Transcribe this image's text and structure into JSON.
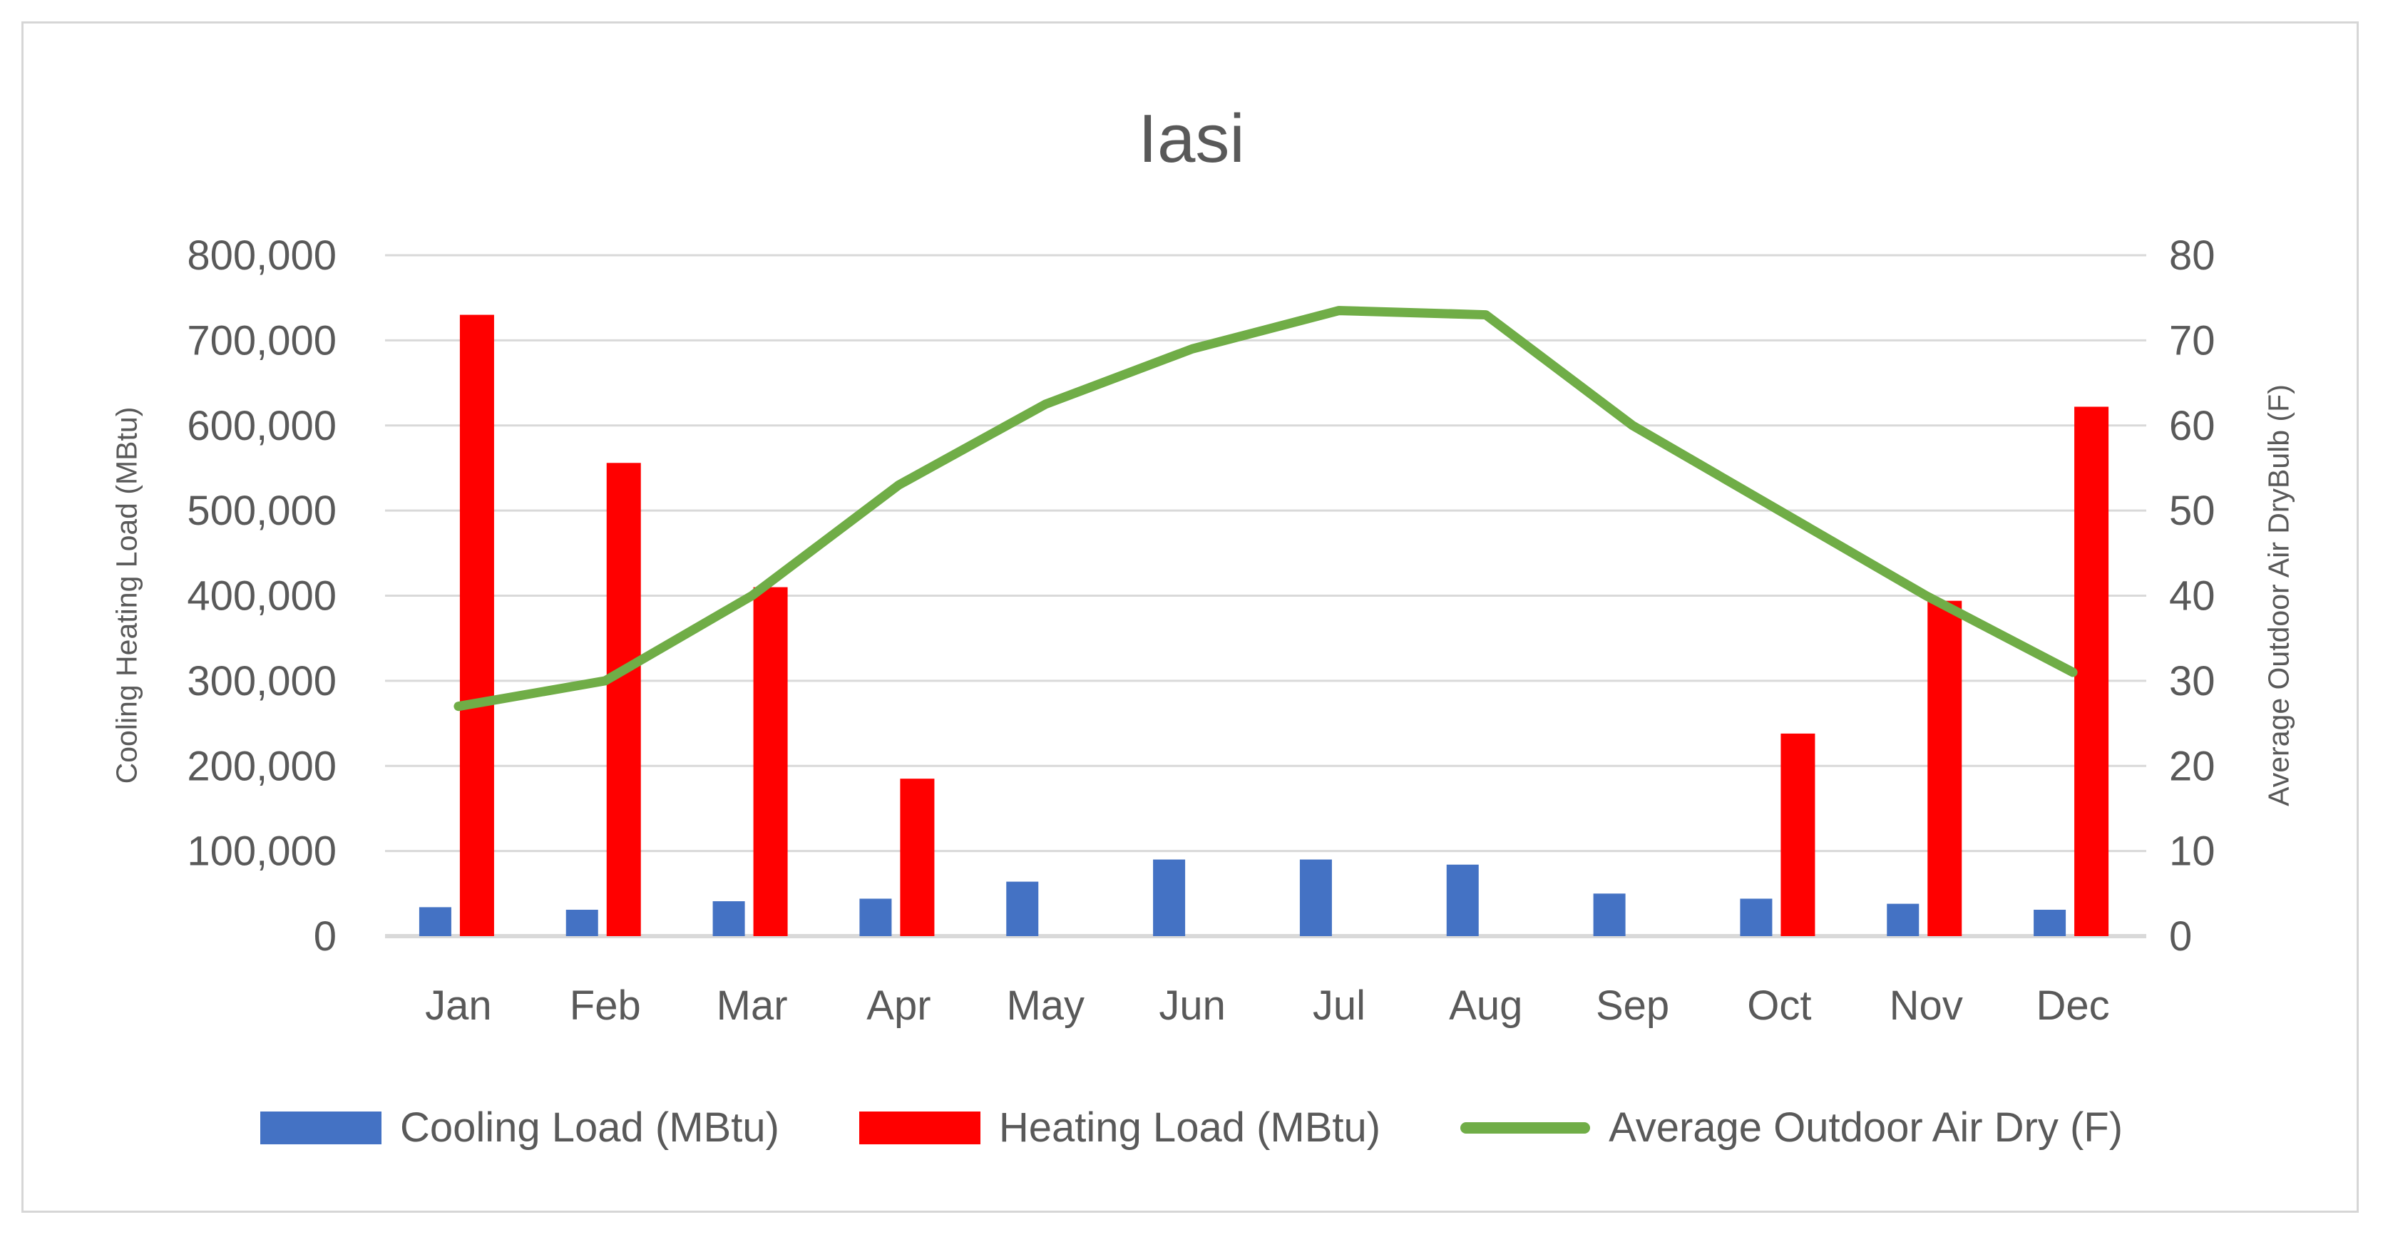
{
  "title": "Iasi",
  "chart_data": {
    "type": "combo-bar-line",
    "title": "Iasi",
    "categories": [
      "Jan",
      "Feb",
      "Mar",
      "Apr",
      "May",
      "Jun",
      "Jul",
      "Aug",
      "Sep",
      "Oct",
      "Nov",
      "Dec"
    ],
    "series": [
      {
        "name": "Cooling Load (MBtu)",
        "type": "bar",
        "axis": "left",
        "color": "#4472C4",
        "values": [
          34000,
          31000,
          41000,
          44000,
          64000,
          90000,
          90000,
          84000,
          50000,
          44000,
          38000,
          31000
        ]
      },
      {
        "name": "Heating Load (MBtu)",
        "type": "bar",
        "axis": "left",
        "color": "#FF0000",
        "values": [
          730000,
          556000,
          410000,
          185000,
          0,
          0,
          0,
          0,
          0,
          238000,
          394000,
          622000
        ]
      },
      {
        "name": "Average Outdoor Air Dry (F)",
        "type": "line",
        "axis": "right",
        "color": "#70AD47",
        "values": [
          27,
          30,
          40,
          53,
          62.5,
          69,
          73.5,
          73,
          60,
          50,
          40,
          31
        ]
      }
    ],
    "left_axis": {
      "title": "Cooling Heating Load (MBtu)",
      "min": 0,
      "max": 800000,
      "step": 100000,
      "tick_labels": [
        "0",
        "100,000",
        "200,000",
        "300,000",
        "400,000",
        "500,000",
        "600,000",
        "700,000",
        "800,000"
      ]
    },
    "right_axis": {
      "title": "Average Outdoor Air DryBulb (F)",
      "min": 0,
      "max": 80,
      "step": 10,
      "tick_labels": [
        "0",
        "10",
        "20",
        "30",
        "40",
        "50",
        "60",
        "70",
        "80"
      ]
    },
    "grid": true,
    "legend_position": "bottom",
    "colors": {
      "gridline": "#D9D9D9",
      "text": "#595959",
      "frame": "#D6D6D6"
    }
  }
}
